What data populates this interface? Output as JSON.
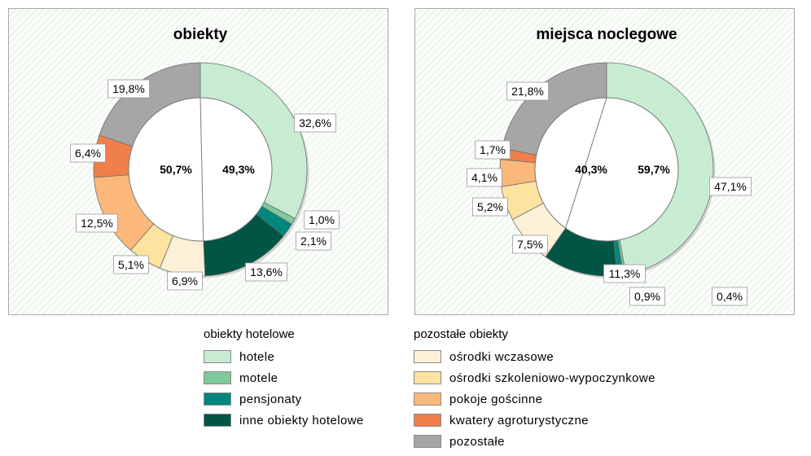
{
  "categories_colors": {
    "hotele": "#c8ecd2",
    "motele": "#7fc99a",
    "pensjonaty": "#00877e",
    "inne obiekty hotelowe": "#005545",
    "ośrodki wczasowe": "#fdf0d8",
    "ośrodki szkoleniowo-wypoczynkowe": "#fde3a0",
    "pokoje gościnne": "#fbb87a",
    "kwatery agroturystyczne": "#f07f4c",
    "pozostałe": "#a6a6a6"
  },
  "chart_data": [
    {
      "type": "pie",
      "title": "obiekty",
      "labels": [
        "hotele",
        "motele",
        "pensjonaty",
        "inne obiekty hotelowe",
        "ośrodki wczasowe",
        "ośrodki szkoleniowo-wypoczynkowe",
        "pokoje gościnne",
        "kwatery agroturystyczne",
        "pozostałe"
      ],
      "values": [
        32.6,
        1.0,
        2.1,
        13.6,
        6.9,
        5.1,
        12.5,
        6.4,
        19.8
      ],
      "value_labels": [
        "32,6%",
        "1,0%",
        "2,1%",
        "13,6%",
        "6,9%",
        "5,1%",
        "12,5%",
        "6,4%",
        "19,8%"
      ],
      "inner": {
        "groups": [
          "obiekty hotelowe",
          "pozostałe obiekty"
        ],
        "values": [
          49.3,
          50.7
        ],
        "value_labels": [
          "49,3%",
          "50,7%"
        ]
      }
    },
    {
      "type": "pie",
      "title": "miejsca noclegowe",
      "labels": [
        "hotele",
        "motele",
        "pensjonaty",
        "inne obiekty hotelowe",
        "ośrodki wczasowe",
        "ośrodki szkoleniowo-wypoczynkowe",
        "pokoje gościnne",
        "kwatery agroturystyczne",
        "pozostałe"
      ],
      "values": [
        47.1,
        0.4,
        0.9,
        11.3,
        7.5,
        5.2,
        4.1,
        1.7,
        21.8
      ],
      "value_labels": [
        "47,1%",
        "0,4%",
        "0,9%",
        "11,3%",
        "7,5%",
        "5,2%",
        "4,1%",
        "1,7%",
        "21,8%"
      ],
      "inner": {
        "groups": [
          "obiekty hotelowe",
          "pozostałe obiekty"
        ],
        "values": [
          59.7,
          40.3
        ],
        "value_labels": [
          "59,7%",
          "40,3%"
        ]
      }
    }
  ],
  "legend": {
    "groups": [
      {
        "title": "obiekty hotelowe",
        "items": [
          "hotele",
          "motele",
          "pensjonaty",
          "inne obiekty hotelowe"
        ]
      },
      {
        "title": "pozostałe obiekty",
        "items": [
          "ośrodki wczasowe",
          "ośrodki szkoleniowo-wypoczynkowe",
          "pokoje gościnne",
          "kwatery agroturystyczne",
          "pozostałe"
        ]
      }
    ]
  }
}
